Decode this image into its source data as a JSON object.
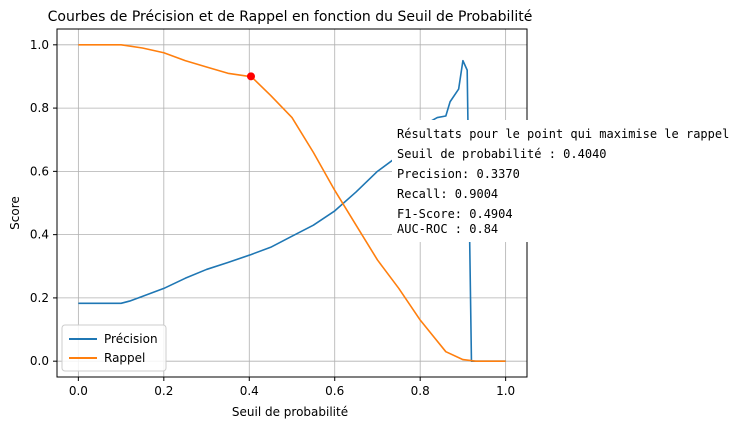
{
  "chart_data": {
    "type": "line",
    "title": "Courbes de Précision et de Rappel en fonction du Seuil de Probabilité",
    "xlabel": "Seuil de probabilité",
    "ylabel": "Score",
    "xlim": [
      -0.05,
      1.05
    ],
    "ylim": [
      -0.05,
      1.05
    ],
    "xticks": [
      "0.0",
      "0.2",
      "0.4",
      "0.6",
      "0.8",
      "1.0"
    ],
    "xtick_values": [
      0.0,
      0.2,
      0.4,
      0.6,
      0.8,
      1.0
    ],
    "yticks": [
      "0.0",
      "0.2",
      "0.4",
      "0.6",
      "0.8",
      "1.0"
    ],
    "ytick_values": [
      0.0,
      0.2,
      0.4,
      0.6,
      0.8,
      1.0
    ],
    "grid": true,
    "legend_position": "lower-left",
    "series": [
      {
        "name": "Précision",
        "color": "#1f77b4",
        "x": [
          0.0,
          0.05,
          0.1,
          0.12,
          0.15,
          0.2,
          0.25,
          0.3,
          0.35,
          0.404,
          0.45,
          0.5,
          0.55,
          0.6,
          0.65,
          0.7,
          0.75,
          0.8,
          0.82,
          0.84,
          0.86,
          0.87,
          0.89,
          0.9,
          0.91,
          0.92,
          0.93,
          0.95,
          1.0
        ],
        "values": [
          0.183,
          0.183,
          0.183,
          0.19,
          0.205,
          0.23,
          0.262,
          0.29,
          0.312,
          0.337,
          0.36,
          0.395,
          0.43,
          0.475,
          0.535,
          0.6,
          0.65,
          0.7,
          0.755,
          0.77,
          0.775,
          0.82,
          0.86,
          0.95,
          0.92,
          0.0,
          0.0,
          0.0,
          0.0
        ]
      },
      {
        "name": "Rappel",
        "color": "#ff7f0e",
        "x": [
          0.0,
          0.05,
          0.1,
          0.15,
          0.2,
          0.25,
          0.3,
          0.35,
          0.4,
          0.404,
          0.45,
          0.5,
          0.55,
          0.6,
          0.65,
          0.7,
          0.75,
          0.8,
          0.83,
          0.86,
          0.9,
          0.93,
          0.95,
          1.0
        ],
        "values": [
          1.0,
          1.0,
          1.0,
          0.99,
          0.975,
          0.95,
          0.93,
          0.91,
          0.9,
          0.9004,
          0.84,
          0.77,
          0.66,
          0.54,
          0.43,
          0.32,
          0.23,
          0.13,
          0.08,
          0.03,
          0.005,
          0.0,
          0.0,
          0.0
        ]
      }
    ],
    "highlight_point": {
      "x": 0.404,
      "y": 0.9004,
      "color": "#ff0000"
    },
    "annotation": {
      "lines": [
        "Résultats pour le point qui maximise le rappel",
        "Seuil de probabilité : 0.4040",
        "Precision: 0.3370",
        "Recall: 0.9004",
        "F1-Score: 0.4904",
        "AUC-ROC : 0.84"
      ]
    }
  }
}
